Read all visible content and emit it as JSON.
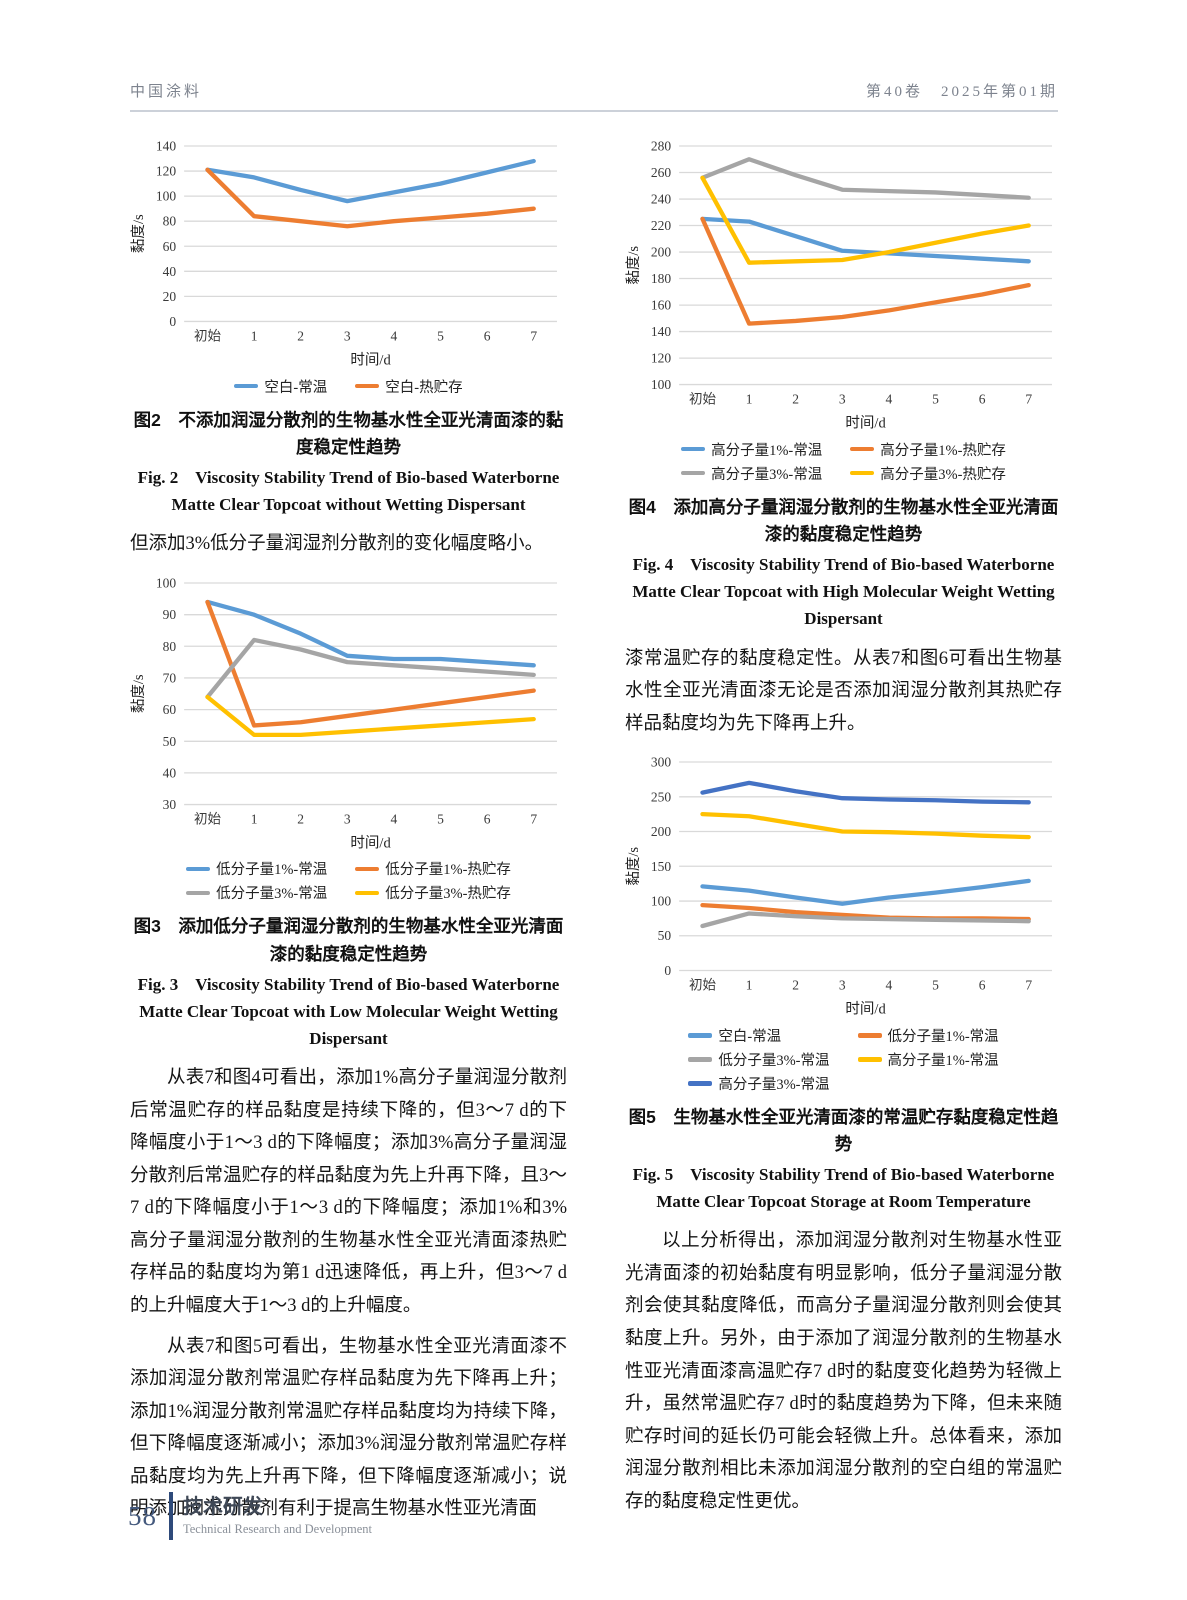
{
  "header": {
    "journal_cn": "中国涂料",
    "issue": "第40卷　2025年第01期"
  },
  "footer": {
    "page_number": "58",
    "section_cn": "技术研发",
    "section_en": "Technical Research and Development"
  },
  "paragraphs": {
    "left": [
      "但添加3%低分子量润湿剂分散剂的变化幅度略小。",
      "从表7和图4可看出，添加1%高分子量润湿分散剂后常温贮存的样品黏度是持续下降的，但3～7 d的下降幅度小于1～3 d的下降幅度；添加3%高分子量润湿分散剂后常温贮存的样品黏度为先上升再下降，且3～7 d的下降幅度小于1～3 d的下降幅度；添加1%和3%高分子量润湿分散剂的生物基水性全亚光清面漆热贮存样品的黏度均为第1 d迅速降低，再上升，但3～7 d的上升幅度大于1～3 d的上升幅度。",
      "从表7和图5可看出，生物基水性全亚光清面漆不添加润湿分散剂常温贮存样品黏度为先下降再上升；添加1%润湿分散剂常温贮存样品黏度均为持续下降，但下降幅度逐渐减小；添加3%润湿分散剂常温贮存样品黏度均为先上升再下降，但下降幅度逐渐减小；说明添加润湿分散剂有利于提高生物基水性亚光清面"
    ],
    "right": [
      "漆常温贮存的黏度稳定性。从表7和图6可看出生物基水性全亚光清面漆无论是否添加润湿分散剂其热贮存样品黏度均为先下降再上升。",
      "以上分析得出，添加润湿分散剂对生物基水性亚光清面漆的初始黏度有明显影响，低分子量润湿分散剂会使其黏度降低，而高分子量润湿分散剂则会使其黏度上升。另外，由于添加了润湿分散剂的生物基水性亚光清面漆高温贮存7 d时的黏度变化趋势为轻微上升，虽然常温贮存7 d时的黏度趋势为下降，但未来随贮存时间的延长仍可能会轻微上升。总体看来，添加润湿分散剂相比未添加润湿分散剂的空白组的常温贮存的黏度稳定性更优。"
    ]
  },
  "chart_data": [
    {
      "id": "fig2",
      "type": "line",
      "categories": [
        "初始",
        "1",
        "2",
        "3",
        "4",
        "5",
        "6",
        "7"
      ],
      "xlabel": "时间/d",
      "ylabel": "黏度/s",
      "ylim": [
        0,
        140
      ],
      "ytick_step": 20,
      "grid": true,
      "legend_position": "bottom",
      "series": [
        {
          "name": "空白-常温",
          "color": "#5B9BD5",
          "values": [
            121,
            115,
            105,
            96,
            103,
            110,
            119,
            128
          ]
        },
        {
          "name": "空白-热贮存",
          "color": "#ED7D31",
          "values": [
            121,
            84,
            80,
            76,
            80,
            83,
            86,
            90
          ]
        }
      ],
      "caption_cn": "图2　不添加润湿分散剂的生物基水性全亚光清面漆的黏度稳定性趋势",
      "caption_en": "Fig. 2　Viscosity Stability Trend of Bio-based Waterborne Matte Clear Topcoat without Wetting Dispersant"
    },
    {
      "id": "fig3",
      "type": "line",
      "categories": [
        "初始",
        "1",
        "2",
        "3",
        "4",
        "5",
        "6",
        "7"
      ],
      "xlabel": "时间/d",
      "ylabel": "黏度/s",
      "ylim": [
        30,
        100
      ],
      "ytick_step": 10,
      "grid": true,
      "legend_position": "bottom",
      "series": [
        {
          "name": "低分子量1%-常温",
          "color": "#5B9BD5",
          "values": [
            94,
            90,
            84,
            77,
            76,
            76,
            75,
            74
          ]
        },
        {
          "name": "低分子量1%-热贮存",
          "color": "#ED7D31",
          "values": [
            94,
            55,
            56,
            58,
            60,
            62,
            64,
            66
          ]
        },
        {
          "name": "低分子量3%-常温",
          "color": "#A5A5A5",
          "values": [
            64,
            82,
            79,
            75,
            74,
            73,
            72,
            71
          ]
        },
        {
          "name": "低分子量3%-热贮存",
          "color": "#FFC000",
          "values": [
            64,
            52,
            52,
            53,
            54,
            55,
            56,
            57
          ]
        }
      ],
      "caption_cn": "图3　添加低分子量润湿分散剂的生物基水性全亚光清面漆的黏度稳定性趋势",
      "caption_en": "Fig. 3　Viscosity Stability Trend of Bio-based Waterborne Matte Clear Topcoat with Low Molecular Weight Wetting Dispersant"
    },
    {
      "id": "fig4",
      "type": "line",
      "categories": [
        "初始",
        "1",
        "2",
        "3",
        "4",
        "5",
        "6",
        "7"
      ],
      "xlabel": "时间/d",
      "ylabel": "黏度/s",
      "ylim": [
        100,
        280
      ],
      "ytick_step": 20,
      "grid": true,
      "legend_position": "bottom",
      "series": [
        {
          "name": "高分子量1%-常温",
          "color": "#5B9BD5",
          "values": [
            225,
            223,
            212,
            201,
            199,
            197,
            195,
            193
          ]
        },
        {
          "name": "高分子量1%-热贮存",
          "color": "#ED7D31",
          "values": [
            225,
            146,
            148,
            151,
            156,
            162,
            168,
            175
          ]
        },
        {
          "name": "高分子量3%-常温",
          "color": "#A5A5A5",
          "values": [
            256,
            270,
            258,
            247,
            246,
            245,
            243,
            241
          ]
        },
        {
          "name": "高分子量3%-热贮存",
          "color": "#FFC000",
          "values": [
            256,
            192,
            193,
            194,
            200,
            207,
            214,
            220
          ]
        }
      ],
      "caption_cn": "图4　添加高分子量润湿分散剂的生物基水性全亚光清面漆的黏度稳定性趋势",
      "caption_en": "Fig. 4　Viscosity Stability Trend of Bio-based Waterborne Matte Clear Topcoat with High Molecular Weight Wetting Dispersant"
    },
    {
      "id": "fig5",
      "type": "line",
      "categories": [
        "初始",
        "1",
        "2",
        "3",
        "4",
        "5",
        "6",
        "7"
      ],
      "xlabel": "时间/d",
      "ylabel": "黏度/s",
      "ylim": [
        0,
        300
      ],
      "ytick_step": 50,
      "grid": true,
      "legend_position": "bottom",
      "series": [
        {
          "name": "空白-常温",
          "color": "#5B9BD5",
          "values": [
            121,
            115,
            105,
            96,
            105,
            112,
            120,
            129
          ]
        },
        {
          "name": "低分子量1%-常温",
          "color": "#ED7D31",
          "values": [
            94,
            90,
            84,
            80,
            76,
            75,
            75,
            74
          ]
        },
        {
          "name": "低分子量3%-常温",
          "color": "#A5A5A5",
          "values": [
            64,
            82,
            78,
            75,
            74,
            73,
            72,
            71
          ]
        },
        {
          "name": "高分子量1%-常温",
          "color": "#FFC000",
          "values": [
            225,
            222,
            211,
            200,
            199,
            197,
            194,
            192
          ]
        },
        {
          "name": "高分子量3%-常温",
          "color": "#4472C4",
          "values": [
            256,
            270,
            258,
            248,
            246,
            245,
            243,
            242
          ]
        }
      ],
      "caption_cn": "图5　生物基水性全亚光清面漆的常温贮存黏度稳定性趋势",
      "caption_en": "Fig. 5　Viscosity Stability Trend of Bio-based Waterborne Matte Clear Topcoat Storage at Room Temperature"
    }
  ]
}
